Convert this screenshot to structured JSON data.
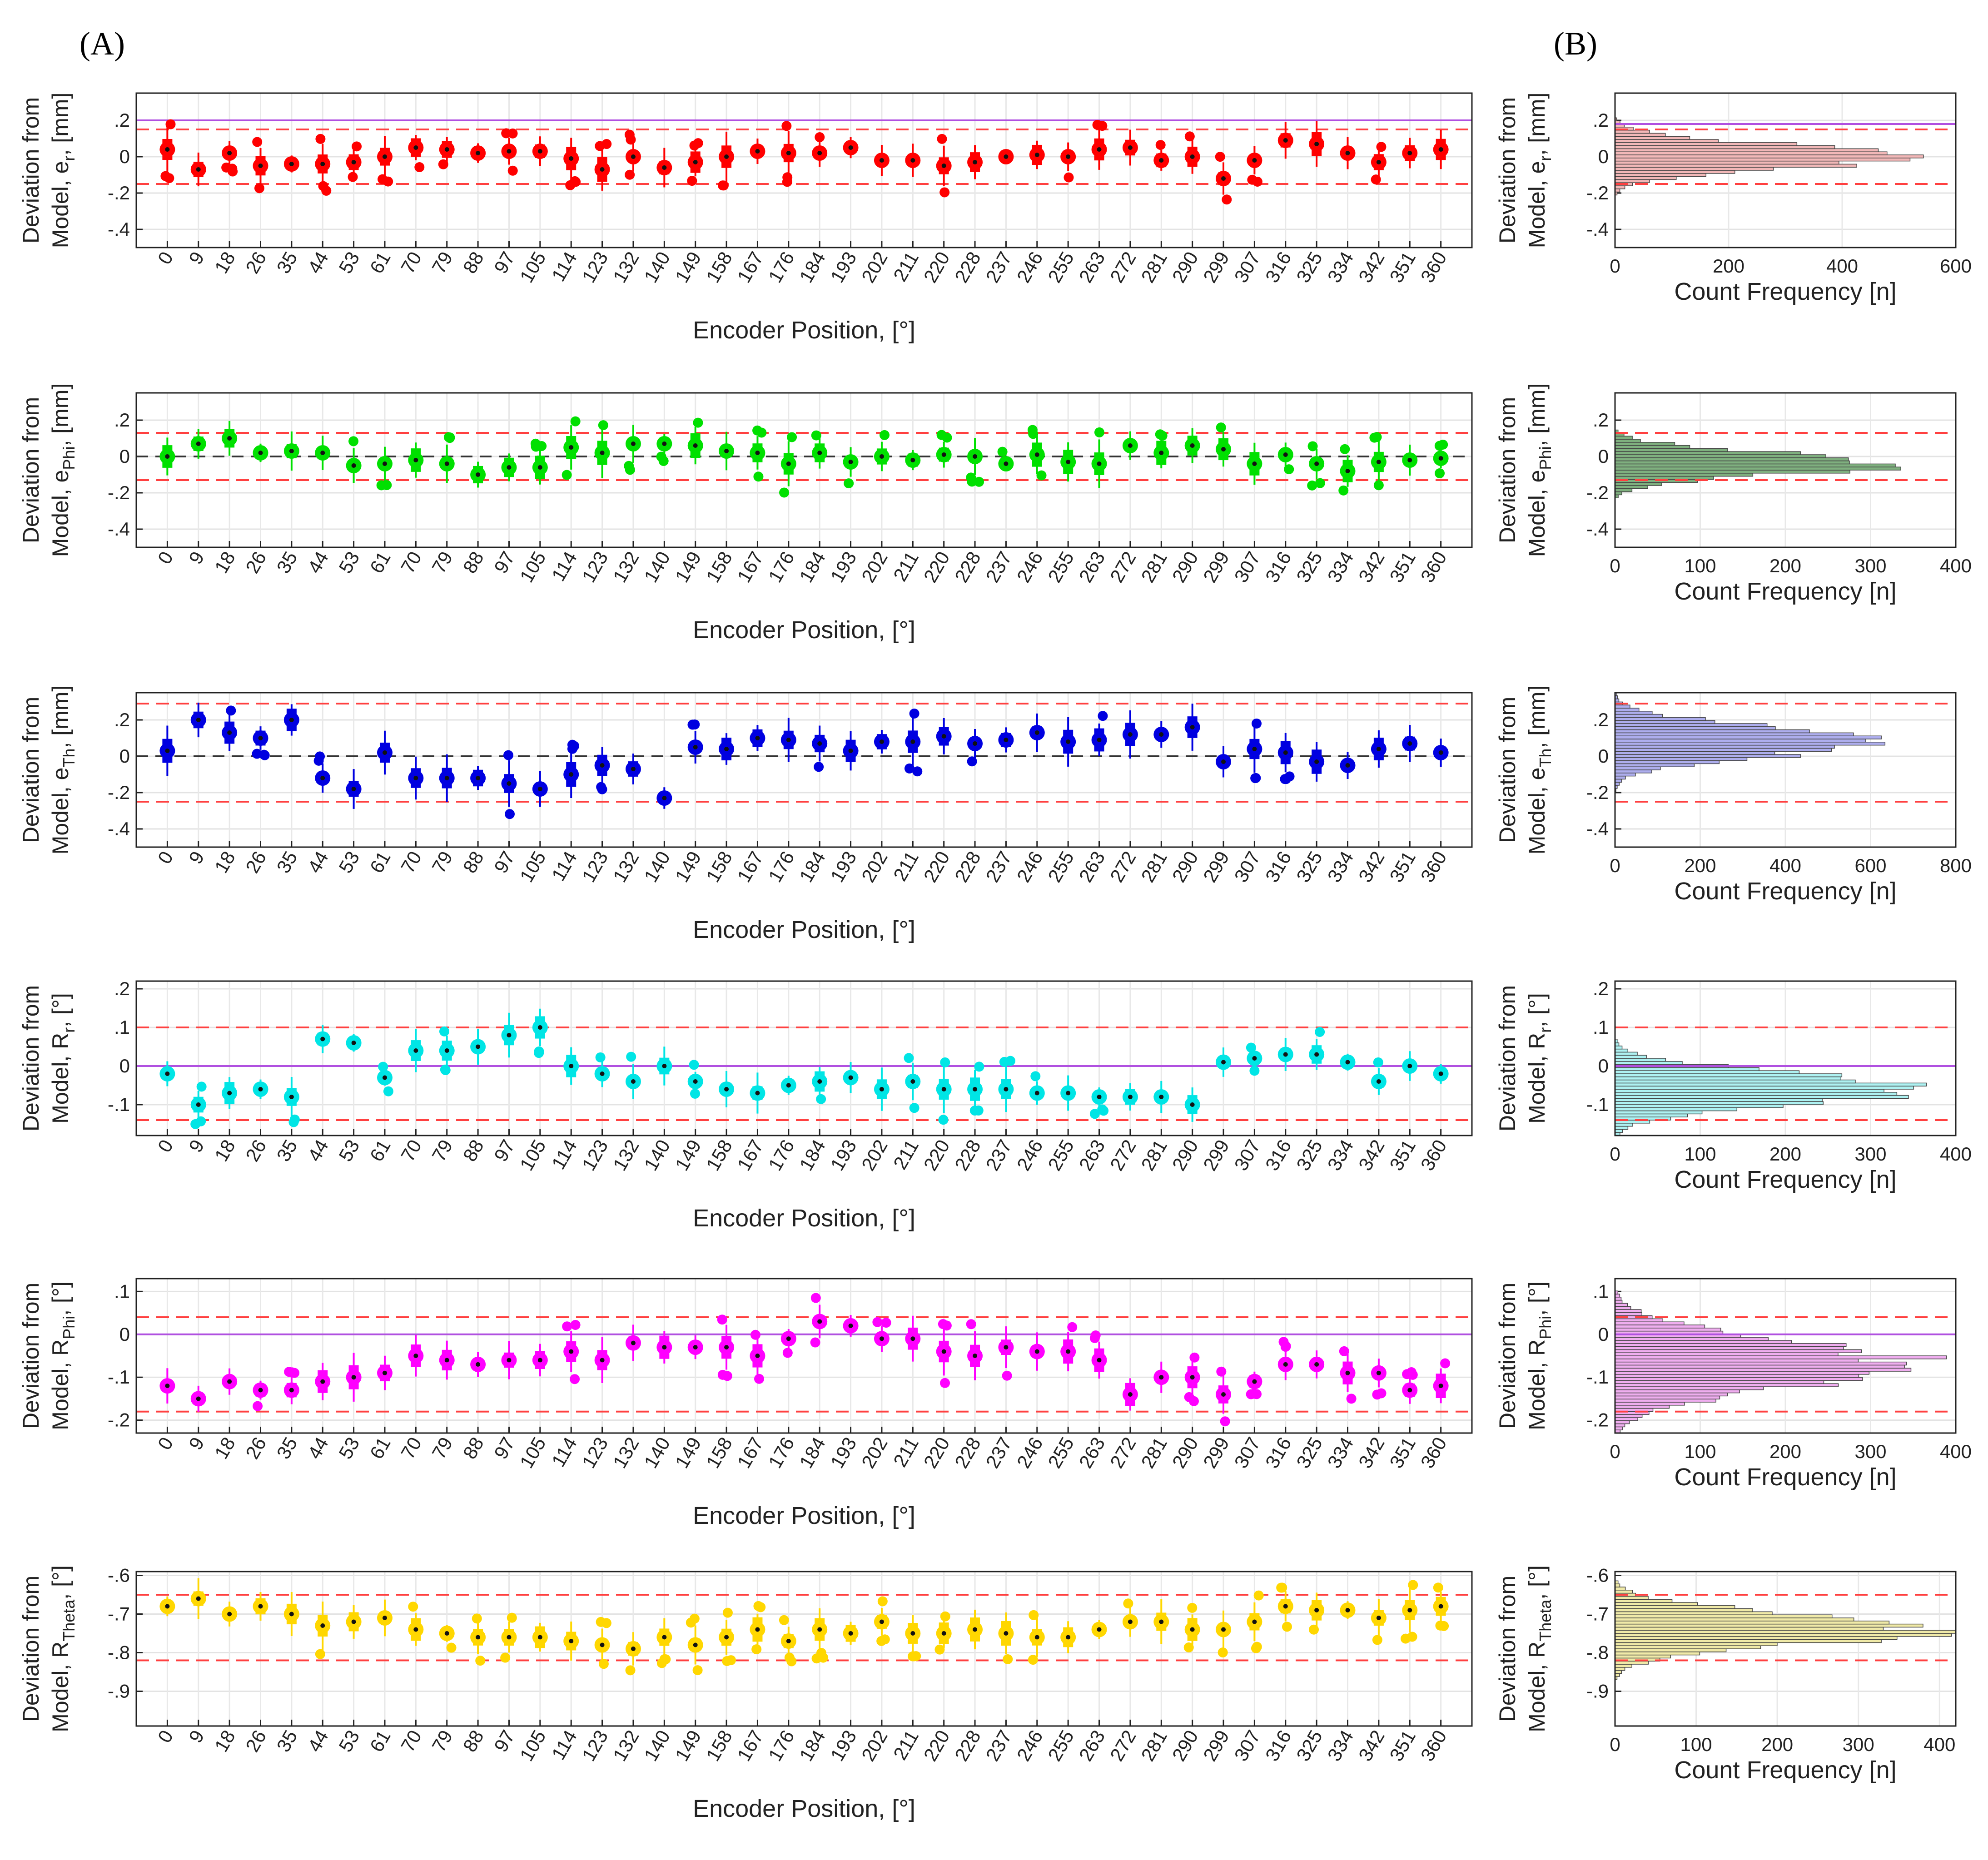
{
  "panel_labels": [
    "(A)",
    "(B)"
  ],
  "chart_data": [
    {
      "id": "er",
      "type": "boxplot",
      "color": "#ff0000",
      "ylabel_line1": "Deviation  from",
      "ylabel_main": "Model,  e",
      "ylabel_sub": "r",
      "ylabel_unit": ",  [mm]",
      "xlabel": "Encoder Position, [°]",
      "ylim": [
        -0.5,
        0.35
      ],
      "yticks": [
        0.2,
        0,
        -0.2,
        -0.4
      ],
      "ref_dashed": [
        0.15,
        -0.15
      ],
      "ref_solid": 0.2,
      "zero_dashed": false,
      "positions": [
        0,
        9,
        18,
        26,
        35,
        44,
        53,
        61,
        70,
        79,
        88,
        97,
        105,
        114,
        123,
        132,
        140,
        149,
        158,
        167,
        176,
        184,
        193,
        202,
        211,
        220,
        228,
        237,
        246,
        255,
        263,
        272,
        281,
        290,
        299,
        307,
        316,
        325,
        334,
        342,
        351,
        360
      ],
      "medians": [
        0.04,
        -0.07,
        0.02,
        -0.05,
        -0.04,
        -0.04,
        -0.03,
        0.0,
        0.05,
        0.04,
        0.02,
        0.03,
        0.03,
        -0.01,
        -0.07,
        0.0,
        -0.06,
        -0.03,
        0.0,
        0.03,
        0.02,
        0.02,
        0.05,
        -0.02,
        -0.02,
        -0.05,
        -0.03,
        0.0,
        0.01,
        0.0,
        0.04,
        0.05,
        -0.02,
        0.0,
        -0.12,
        -0.02,
        0.09,
        0.07,
        0.02,
        -0.03,
        0.02,
        0.04
      ],
      "histogram": {
        "xlabel": "Count Frequency [n]",
        "xlim": [
          0,
          600
        ],
        "xticks": [
          0,
          200,
          400,
          600
        ],
        "ylim": [
          -0.5,
          0.35
        ],
        "yticks": [
          0.2,
          0,
          -0.2,
          -0.4
        ],
        "ref_dashed": [
          0.15,
          -0.15
        ],
        "ref_solid": 0.18,
        "fill": "#f2b8b8",
        "center": 0.0,
        "spread": 0.065,
        "peak": 540
      }
    },
    {
      "id": "ephi",
      "type": "boxplot",
      "color": "#00e000",
      "ylabel_line1": "Deviation  from",
      "ylabel_main": "Model,  e",
      "ylabel_sub": "Phi",
      "ylabel_unit": ",  [mm]",
      "xlabel": "Encoder Position, [°]",
      "ylim": [
        -0.5,
        0.35
      ],
      "yticks": [
        0.2,
        0,
        -0.2,
        -0.4
      ],
      "ref_dashed": [
        0.13,
        -0.13
      ],
      "ref_solid": null,
      "zero_dashed": true,
      "positions": [
        0,
        9,
        18,
        26,
        35,
        44,
        53,
        61,
        70,
        79,
        88,
        97,
        105,
        114,
        123,
        132,
        140,
        149,
        158,
        167,
        176,
        184,
        193,
        202,
        211,
        220,
        228,
        237,
        246,
        255,
        263,
        272,
        281,
        290,
        299,
        307,
        316,
        325,
        334,
        342,
        351,
        360
      ],
      "medians": [
        0.0,
        0.07,
        0.1,
        0.02,
        0.03,
        0.02,
        -0.05,
        -0.04,
        -0.02,
        -0.04,
        -0.1,
        -0.06,
        -0.06,
        0.05,
        0.02,
        0.07,
        0.07,
        0.06,
        0.03,
        0.02,
        -0.04,
        0.02,
        -0.03,
        0.0,
        -0.02,
        0.01,
        0.0,
        -0.04,
        0.01,
        -0.03,
        -0.04,
        0.06,
        0.02,
        0.06,
        0.04,
        -0.04,
        0.01,
        -0.04,
        -0.08,
        -0.03,
        -0.02,
        -0.01
      ],
      "histogram": {
        "xlabel": "Count Frequency [n]",
        "xlim": [
          0,
          400
        ],
        "xticks": [
          0,
          100,
          200,
          300,
          400
        ],
        "ylim": [
          -0.5,
          0.35
        ],
        "yticks": [
          0.2,
          0,
          -0.2,
          -0.4
        ],
        "ref_dashed": [
          0.13,
          -0.13
        ],
        "ref_solid": null,
        "fill": "#7fb07f",
        "center": -0.04,
        "spread": 0.06,
        "peak": 350
      }
    },
    {
      "id": "eth",
      "type": "boxplot",
      "color": "#0000e0",
      "ylabel_line1": "Deviation  from",
      "ylabel_main": "Model,  e",
      "ylabel_sub": "Th",
      "ylabel_unit": ",  [mm]",
      "xlabel": "Encoder Position, [°]",
      "ylim": [
        -0.5,
        0.35
      ],
      "yticks": [
        0.2,
        0,
        -0.2,
        -0.4
      ],
      "ref_dashed": [
        0.29,
        -0.25
      ],
      "ref_solid": null,
      "zero_dashed": true,
      "positions": [
        0,
        9,
        18,
        26,
        35,
        44,
        53,
        61,
        70,
        79,
        88,
        97,
        105,
        114,
        123,
        132,
        140,
        149,
        158,
        167,
        176,
        184,
        193,
        202,
        211,
        220,
        228,
        237,
        246,
        255,
        263,
        272,
        281,
        290,
        299,
        307,
        316,
        325,
        334,
        342,
        351,
        360
      ],
      "medians": [
        0.03,
        0.2,
        0.13,
        0.1,
        0.2,
        -0.12,
        -0.18,
        0.02,
        -0.12,
        -0.12,
        -0.12,
        -0.15,
        -0.18,
        -0.1,
        -0.05,
        -0.07,
        -0.23,
        0.05,
        0.04,
        0.1,
        0.09,
        0.07,
        0.03,
        0.08,
        0.08,
        0.11,
        0.07,
        0.09,
        0.13,
        0.08,
        0.09,
        0.12,
        0.12,
        0.16,
        -0.03,
        0.04,
        0.02,
        -0.03,
        -0.05,
        0.04,
        0.07,
        0.02
      ],
      "histogram": {
        "xlabel": "Count Frequency [n]",
        "xlim": [
          0,
          800
        ],
        "xticks": [
          0,
          200,
          400,
          600,
          800
        ],
        "ylim": [
          -0.5,
          0.35
        ],
        "yticks": [
          0.2,
          0,
          -0.2,
          -0.4
        ],
        "ref_dashed": [
          0.29,
          -0.25
        ],
        "ref_solid": null,
        "fill": "#aeaeee",
        "center": 0.08,
        "spread": 0.08,
        "peak": 670
      }
    },
    {
      "id": "rr",
      "type": "boxplot",
      "color": "#00e5e5",
      "ylabel_line1": "Deviation  from",
      "ylabel_main": "Model,  R",
      "ylabel_sub": "r",
      "ylabel_unit": ",  [°]",
      "xlabel": "Encoder Position, [°]",
      "ylim": [
        -0.18,
        0.22
      ],
      "yticks": [
        0.2,
        0.1,
        0,
        -0.1
      ],
      "ref_dashed": [
        0.1,
        -0.14
      ],
      "ref_solid": 0.0,
      "zero_dashed": false,
      "positions": [
        0,
        9,
        18,
        26,
        35,
        44,
        53,
        61,
        70,
        79,
        88,
        97,
        105,
        114,
        123,
        132,
        140,
        149,
        158,
        167,
        176,
        184,
        193,
        202,
        211,
        220,
        228,
        237,
        246,
        255,
        263,
        272,
        281,
        290,
        299,
        307,
        316,
        325,
        334,
        342,
        351,
        360
      ],
      "medians": [
        -0.02,
        -0.1,
        -0.07,
        -0.06,
        -0.08,
        0.07,
        0.06,
        -0.03,
        0.04,
        0.04,
        0.05,
        0.08,
        0.1,
        0.0,
        -0.02,
        -0.04,
        0.0,
        -0.04,
        -0.06,
        -0.07,
        -0.05,
        -0.04,
        -0.03,
        -0.06,
        -0.04,
        -0.06,
        -0.06,
        -0.06,
        -0.07,
        -0.07,
        -0.08,
        -0.08,
        -0.08,
        -0.1,
        0.01,
        0.02,
        0.03,
        0.03,
        0.01,
        -0.04,
        0.0,
        -0.02
      ],
      "histogram": {
        "xlabel": "Count Frequency [n]",
        "xlim": [
          0,
          400
        ],
        "xticks": [
          0,
          100,
          200,
          300,
          400
        ],
        "ylim": [
          -0.18,
          0.22
        ],
        "yticks": [
          0.2,
          0.1,
          0,
          -0.1
        ],
        "ref_dashed": [
          0.1,
          -0.14
        ],
        "ref_solid": 0.0,
        "fill": "#aef2f2",
        "center": -0.06,
        "spread": 0.04,
        "peak": 375
      }
    },
    {
      "id": "rphi",
      "type": "boxplot",
      "color": "#ff00ff",
      "ylabel_line1": "Deviation  from",
      "ylabel_main": "Model,  R",
      "ylabel_sub": "Phi",
      "ylabel_unit": ",  [°]",
      "xlabel": "Encoder Position, [°]",
      "ylim": [
        -0.23,
        0.13
      ],
      "yticks": [
        0.1,
        0,
        -0.1,
        -0.2
      ],
      "ref_dashed": [
        0.04,
        -0.18
      ],
      "ref_solid": 0.0,
      "zero_dashed": false,
      "positions": [
        0,
        9,
        18,
        26,
        35,
        44,
        53,
        61,
        70,
        79,
        88,
        97,
        105,
        114,
        123,
        132,
        140,
        149,
        158,
        167,
        176,
        184,
        193,
        202,
        211,
        220,
        228,
        237,
        246,
        255,
        263,
        272,
        281,
        290,
        299,
        307,
        316,
        325,
        334,
        342,
        351,
        360
      ],
      "medians": [
        -0.12,
        -0.15,
        -0.11,
        -0.13,
        -0.13,
        -0.11,
        -0.1,
        -0.09,
        -0.05,
        -0.06,
        -0.07,
        -0.06,
        -0.06,
        -0.04,
        -0.06,
        -0.02,
        -0.03,
        -0.03,
        -0.03,
        -0.05,
        -0.01,
        0.03,
        0.02,
        -0.01,
        -0.01,
        -0.04,
        -0.05,
        -0.03,
        -0.04,
        -0.04,
        -0.06,
        -0.14,
        -0.1,
        -0.1,
        -0.14,
        -0.11,
        -0.07,
        -0.07,
        -0.09,
        -0.09,
        -0.13,
        -0.12
      ],
      "histogram": {
        "xlabel": "Count Frequency [n]",
        "xlim": [
          0,
          400
        ],
        "xticks": [
          0,
          100,
          200,
          300,
          400
        ],
        "ylim": [
          -0.23,
          0.13
        ],
        "yticks": [
          0.1,
          0,
          -0.1,
          -0.2
        ],
        "ref_dashed": [
          0.04,
          -0.18
        ],
        "ref_solid": 0.0,
        "fill": "#f0aef0",
        "center": -0.07,
        "spread": 0.055,
        "peak": 370
      }
    },
    {
      "id": "rtheta",
      "type": "boxplot",
      "color": "#ffd700",
      "ylabel_line1": "Deviation  from",
      "ylabel_main": "Model,  R",
      "ylabel_sub": "Theta",
      "ylabel_unit": ",  [°]",
      "xlabel": "Encoder Position, [°]",
      "ylim": [
        -0.99,
        -0.59
      ],
      "yticks": [
        -0.6,
        -0.7,
        -0.8,
        -0.9
      ],
      "ref_dashed": [
        -0.65,
        -0.82
      ],
      "ref_solid": null,
      "zero_dashed": false,
      "positions": [
        0,
        9,
        18,
        26,
        35,
        44,
        53,
        61,
        70,
        79,
        88,
        97,
        105,
        114,
        123,
        132,
        140,
        149,
        158,
        167,
        176,
        184,
        193,
        202,
        211,
        220,
        228,
        237,
        246,
        255,
        263,
        272,
        281,
        290,
        299,
        307,
        316,
        325,
        334,
        342,
        351,
        360
      ],
      "medians": [
        -0.68,
        -0.66,
        -0.7,
        -0.68,
        -0.7,
        -0.73,
        -0.72,
        -0.71,
        -0.74,
        -0.75,
        -0.76,
        -0.76,
        -0.76,
        -0.77,
        -0.78,
        -0.79,
        -0.76,
        -0.78,
        -0.76,
        -0.74,
        -0.77,
        -0.74,
        -0.75,
        -0.72,
        -0.75,
        -0.75,
        -0.74,
        -0.75,
        -0.76,
        -0.76,
        -0.74,
        -0.72,
        -0.72,
        -0.74,
        -0.74,
        -0.72,
        -0.68,
        -0.69,
        -0.69,
        -0.71,
        -0.69,
        -0.68
      ],
      "histogram": {
        "xlabel": "Count Frequency [n]",
        "xlim": [
          0,
          420
        ],
        "xticks": [
          0,
          100,
          200,
          300,
          400
        ],
        "ylim": [
          -0.99,
          -0.59
        ],
        "yticks": [
          -0.6,
          -0.7,
          -0.8,
          -0.9
        ],
        "ref_dashed": [
          -0.65,
          -0.82
        ],
        "ref_solid": null,
        "fill": "#f0eaa8",
        "center": -0.74,
        "spread": 0.04,
        "peak": 410
      }
    }
  ]
}
